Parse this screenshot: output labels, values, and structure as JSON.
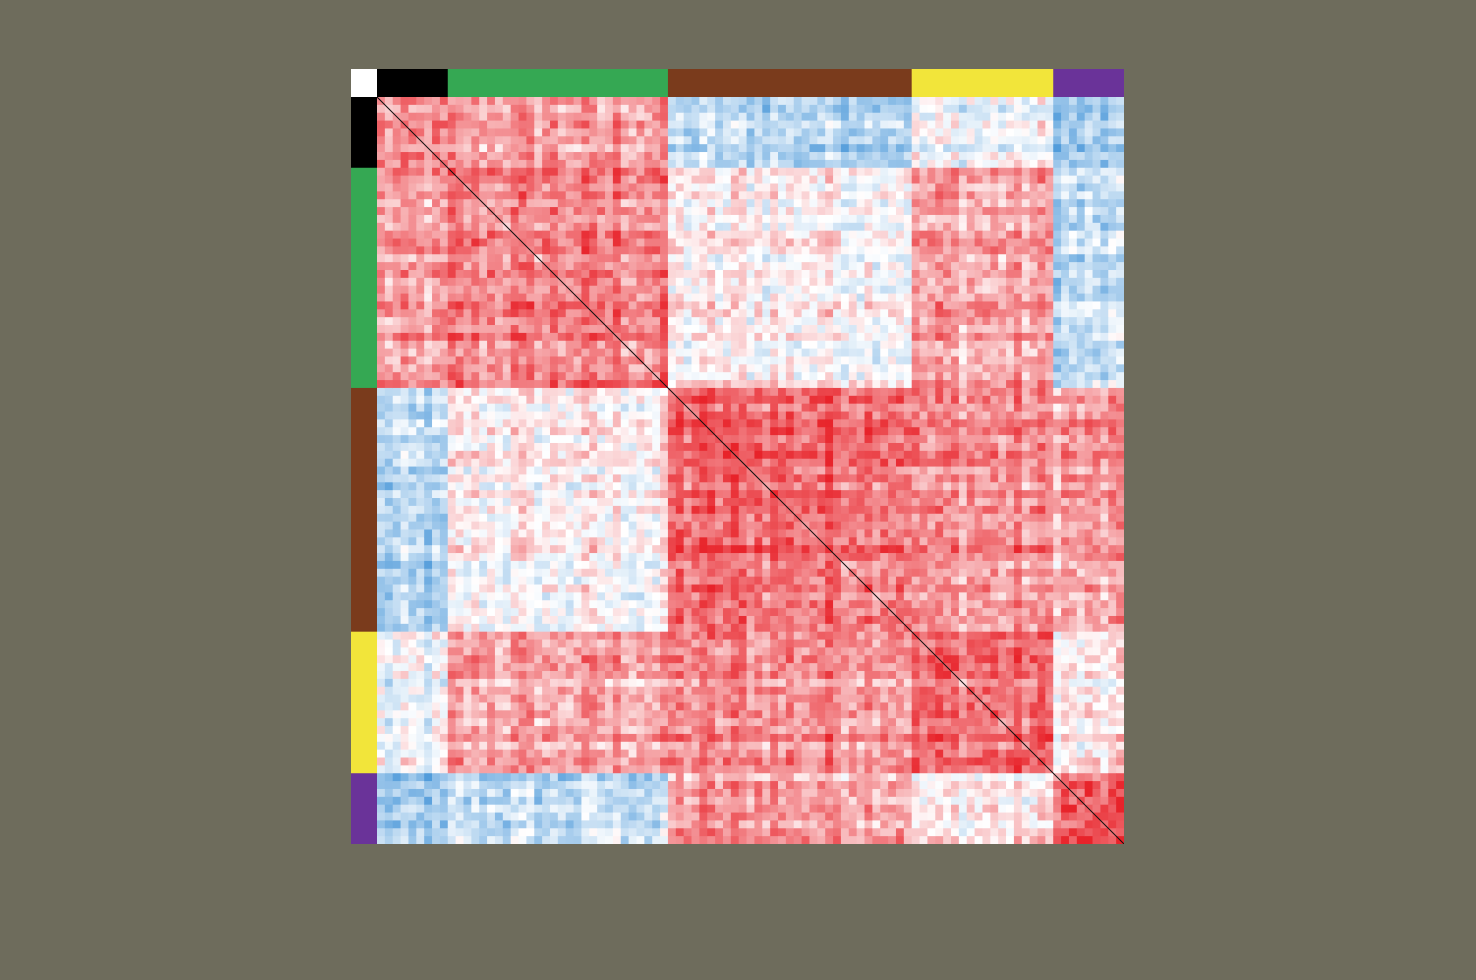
{
  "chart_data": {
    "type": "heatmap",
    "title": "",
    "xlabel": "",
    "ylabel": "",
    "description_of_encoding": "",
    "color_scale": {
      "negative": "#3b8fd6",
      "zero": "#ffffff",
      "positive": "#e8232a"
    },
    "value_range": [
      -1,
      1
    ],
    "groups": [
      {
        "color": "#000000",
        "size": 9
      },
      {
        "color": "#35a853",
        "size": 28
      },
      {
        "color": "#7a3b1c",
        "size": 31
      },
      {
        "color": "#f2e53a",
        "size": 18
      },
      {
        "color": "#6a3399",
        "size": 9
      }
    ],
    "block_mean_correlation": [
      [
        0.45,
        0.4,
        -0.4,
        -0.1,
        -0.55
      ],
      [
        0.4,
        0.55,
        0.05,
        0.4,
        -0.35
      ],
      [
        -0.4,
        0.05,
        0.7,
        0.5,
        0.45
      ],
      [
        -0.1,
        0.4,
        0.5,
        0.65,
        0.05
      ],
      [
        -0.55,
        -0.35,
        0.45,
        0.05,
        0.7
      ]
    ],
    "diagonal": "#111111",
    "grid": false,
    "legend": "none"
  }
}
